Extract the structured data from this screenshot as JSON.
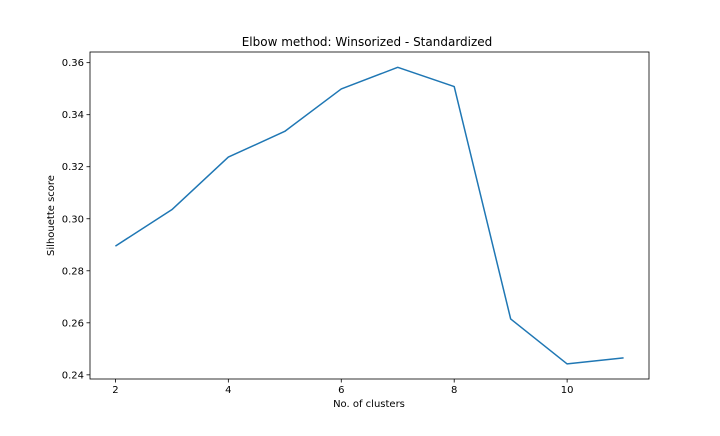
{
  "chart_data": {
    "type": "line",
    "title": "Elbow method: Winsorized - Standardized",
    "xlabel": "No. of clusters",
    "ylabel": "Silhouette score",
    "x": [
      2,
      3,
      4,
      5,
      6,
      7,
      8,
      9,
      10,
      11
    ],
    "series": [
      {
        "values": [
          0.2895,
          0.3035,
          0.3237,
          0.3336,
          0.3499,
          0.3582,
          0.3508,
          0.2615,
          0.2442,
          0.2465
        ]
      }
    ],
    "xlim": [
      1.55,
      11.45
    ],
    "ylim": [
      0.2384,
      0.3641
    ],
    "xticks": [
      2,
      4,
      6,
      8,
      10
    ],
    "yticks": [
      0.24,
      0.26,
      0.28,
      0.3,
      0.32,
      0.34,
      0.36
    ],
    "ytick_labels": [
      "0.24",
      "0.26",
      "0.28",
      "0.30",
      "0.32",
      "0.34",
      "0.36"
    ],
    "grid": false,
    "line_color": "#1f77b4"
  }
}
